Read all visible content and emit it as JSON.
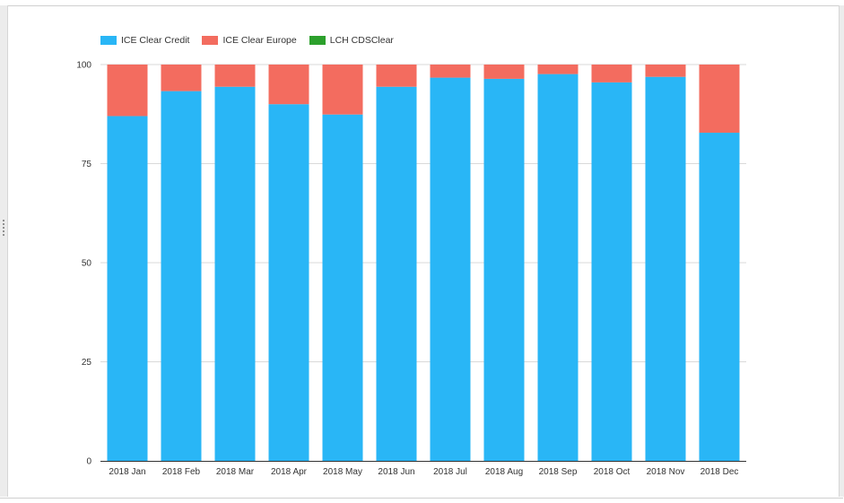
{
  "chart_data": {
    "type": "bar",
    "stacked": true,
    "categories": [
      "2018 Jan",
      "2018 Feb",
      "2018 Mar",
      "2018 Apr",
      "2018 May",
      "2018 Jun",
      "2018 Jul",
      "2018 Aug",
      "2018 Sep",
      "2018 Oct",
      "2018 Nov",
      "2018 Dec"
    ],
    "series": [
      {
        "name": "ICE Clear Credit",
        "color": "#29b6f6",
        "values": [
          87,
          93.3,
          94.4,
          90,
          87.4,
          94.4,
          96.7,
          96.4,
          97.6,
          95.5,
          96.9,
          82.8
        ]
      },
      {
        "name": "ICE Clear Europe",
        "color": "#f36c5f",
        "values": [
          13,
          6.7,
          5.6,
          10,
          12.6,
          5.6,
          3.3,
          3.6,
          2.4,
          4.5,
          3.1,
          17.2
        ]
      },
      {
        "name": "LCH CDSClear",
        "color": "#2ca02c",
        "values": [
          0,
          0,
          0,
          0,
          0,
          0,
          0,
          0,
          0,
          0,
          0,
          0
        ]
      }
    ],
    "yticks": [
      0,
      25,
      50,
      75,
      100
    ],
    "ylim": [
      0,
      100
    ],
    "title": "",
    "xlabel": "",
    "ylabel": "",
    "grid": true,
    "legend_position": "top-left"
  }
}
